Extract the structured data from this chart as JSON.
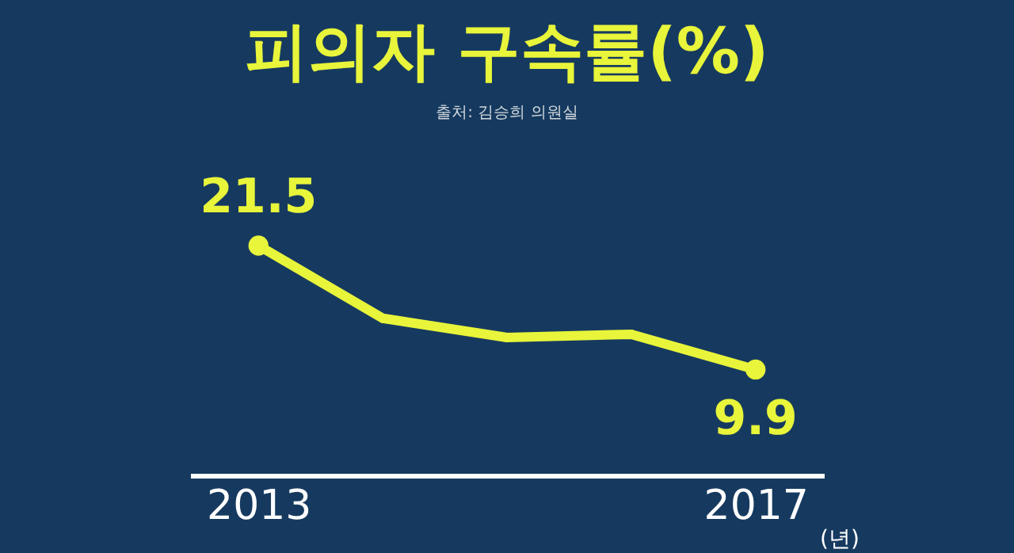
{
  "chart_data": {
    "type": "line",
    "title": "피의자 구속률(%)",
    "annotations": [
      "출처: 김승희 의원실"
    ],
    "xlabel": "(년)",
    "categories": [
      "2013",
      null,
      null,
      null,
      "2017"
    ],
    "series": [
      {
        "color": "#e8f53a",
        "values": [
          21.5,
          14.7,
          12.9,
          13.2,
          9.9
        ],
        "value_labels": [
          "21.5",
          null,
          null,
          null,
          "9.9"
        ]
      }
    ],
    "tick_labels": "x",
    "grid": false,
    "marker": "circle",
    "line_style": "solid"
  }
}
